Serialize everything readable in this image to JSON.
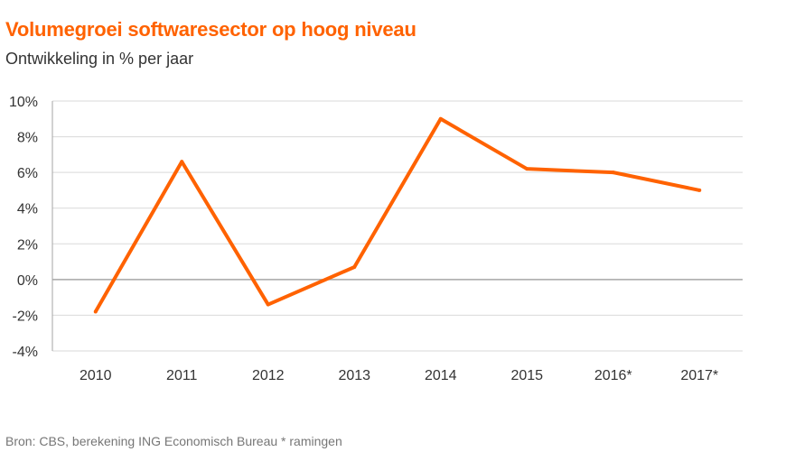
{
  "title": "Volumegroei softwaresector op hoog niveau",
  "subtitle": "Ontwikkeling in % per jaar",
  "source": "Bron: CBS, berekening ING Economisch Bureau * ramingen",
  "colors": {
    "title": "#ff6200",
    "line": "#ff6200",
    "grid": "#d9d9d9",
    "axis": "#a6a6a6"
  },
  "chart_data": {
    "type": "line",
    "categories": [
      "2010",
      "2011",
      "2012",
      "2013",
      "2014",
      "2015",
      "2016*",
      "2017*"
    ],
    "series": [
      {
        "values": [
          -1.8,
          6.6,
          -1.4,
          0.7,
          9.0,
          6.2,
          6.0,
          5.0
        ]
      }
    ],
    "ylim": [
      -4,
      10
    ],
    "yticks": [
      -4,
      -2,
      0,
      2,
      4,
      6,
      8,
      10
    ],
    "ytick_labels": [
      "-4%",
      "-2%",
      "0%",
      "2%",
      "4%",
      "6%",
      "8%",
      "10%"
    ],
    "grid": true,
    "xlabel": "",
    "ylabel": ""
  }
}
